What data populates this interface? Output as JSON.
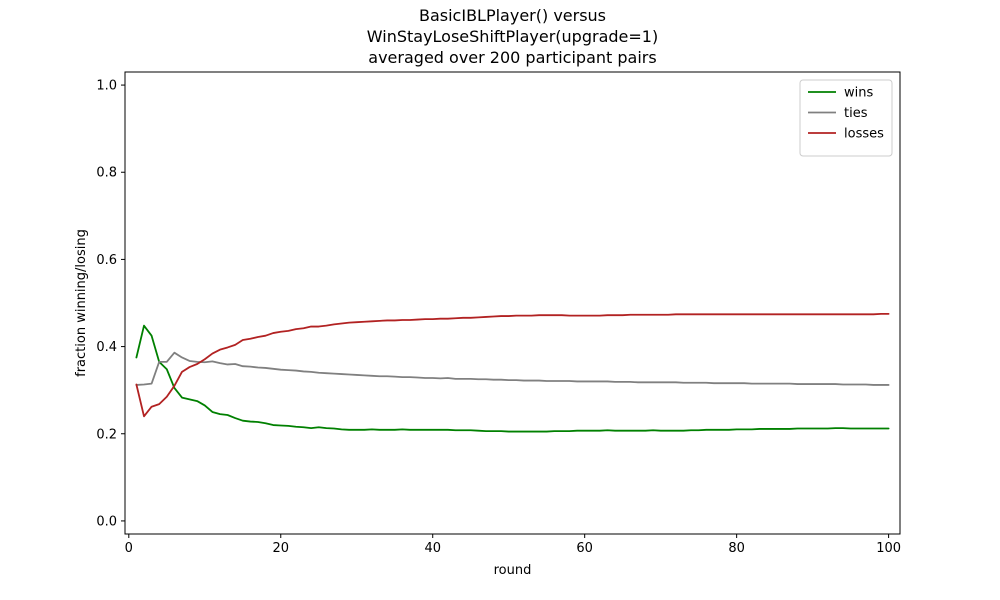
{
  "chart_data": {
    "type": "line",
    "title": [
      "BasicIBLPlayer() versus",
      "WinStayLoseShiftPlayer(upgrade=1)",
      "averaged over 200 participant pairs"
    ],
    "xlabel": "round",
    "ylabel": "fraction winning/losing",
    "xlim": [
      -0.5,
      101.5
    ],
    "ylim": [
      -0.03,
      1.03
    ],
    "xticks": [
      0,
      20,
      40,
      60,
      80,
      100
    ],
    "yticks": [
      0.0,
      0.2,
      0.4,
      0.6,
      0.8,
      1.0
    ],
    "xtick_labels": [
      "0",
      "20",
      "40",
      "60",
      "80",
      "100"
    ],
    "ytick_labels": [
      "0.0",
      "0.2",
      "0.4",
      "0.6",
      "0.8",
      "1.0"
    ],
    "grid": false,
    "legend": {
      "position": "top-right"
    },
    "x_start": 1,
    "x_end": 100,
    "series": [
      {
        "name": "wins",
        "color": "#008000",
        "values": [
          0.375,
          0.448,
          0.425,
          0.365,
          0.348,
          0.305,
          0.283,
          0.279,
          0.275,
          0.265,
          0.25,
          0.245,
          0.243,
          0.236,
          0.23,
          0.228,
          0.227,
          0.224,
          0.22,
          0.219,
          0.218,
          0.216,
          0.215,
          0.213,
          0.215,
          0.213,
          0.212,
          0.21,
          0.209,
          0.209,
          0.209,
          0.21,
          0.209,
          0.209,
          0.209,
          0.21,
          0.209,
          0.209,
          0.209,
          0.209,
          0.209,
          0.209,
          0.208,
          0.208,
          0.208,
          0.207,
          0.206,
          0.206,
          0.206,
          0.205,
          0.205,
          0.205,
          0.205,
          0.205,
          0.205,
          0.206,
          0.206,
          0.206,
          0.207,
          0.207,
          0.207,
          0.207,
          0.208,
          0.207,
          0.207,
          0.207,
          0.207,
          0.207,
          0.208,
          0.207,
          0.207,
          0.207,
          0.207,
          0.208,
          0.208,
          0.209,
          0.209,
          0.209,
          0.209,
          0.21,
          0.21,
          0.21,
          0.211,
          0.211,
          0.211,
          0.211,
          0.211,
          0.212,
          0.212,
          0.212,
          0.212,
          0.212,
          0.213,
          0.213,
          0.212,
          0.212,
          0.212,
          0.212,
          0.212,
          0.212
        ]
      },
      {
        "name": "ties",
        "color": "#808080",
        "values": [
          0.312,
          0.313,
          0.315,
          0.365,
          0.365,
          0.386,
          0.375,
          0.367,
          0.365,
          0.364,
          0.366,
          0.362,
          0.359,
          0.36,
          0.355,
          0.354,
          0.352,
          0.351,
          0.349,
          0.347,
          0.346,
          0.345,
          0.343,
          0.342,
          0.34,
          0.339,
          0.338,
          0.337,
          0.336,
          0.335,
          0.334,
          0.333,
          0.332,
          0.332,
          0.331,
          0.33,
          0.33,
          0.329,
          0.328,
          0.328,
          0.327,
          0.328,
          0.326,
          0.326,
          0.326,
          0.325,
          0.325,
          0.324,
          0.324,
          0.323,
          0.323,
          0.322,
          0.322,
          0.322,
          0.321,
          0.321,
          0.321,
          0.321,
          0.32,
          0.32,
          0.32,
          0.32,
          0.32,
          0.319,
          0.319,
          0.319,
          0.318,
          0.318,
          0.318,
          0.318,
          0.318,
          0.318,
          0.317,
          0.317,
          0.317,
          0.317,
          0.316,
          0.316,
          0.316,
          0.316,
          0.316,
          0.315,
          0.315,
          0.315,
          0.315,
          0.315,
          0.315,
          0.314,
          0.314,
          0.314,
          0.314,
          0.314,
          0.314,
          0.313,
          0.313,
          0.313,
          0.313,
          0.312,
          0.312,
          0.312
        ]
      },
      {
        "name": "losses",
        "color": "#b22222",
        "values": [
          0.313,
          0.24,
          0.262,
          0.268,
          0.285,
          0.31,
          0.342,
          0.353,
          0.36,
          0.371,
          0.384,
          0.393,
          0.398,
          0.404,
          0.415,
          0.418,
          0.422,
          0.425,
          0.431,
          0.434,
          0.436,
          0.44,
          0.442,
          0.446,
          0.446,
          0.448,
          0.451,
          0.453,
          0.455,
          0.456,
          0.457,
          0.458,
          0.459,
          0.46,
          0.46,
          0.461,
          0.461,
          0.462,
          0.463,
          0.463,
          0.464,
          0.464,
          0.465,
          0.466,
          0.466,
          0.467,
          0.468,
          0.469,
          0.47,
          0.47,
          0.471,
          0.471,
          0.471,
          0.472,
          0.472,
          0.472,
          0.472,
          0.471,
          0.471,
          0.471,
          0.471,
          0.471,
          0.472,
          0.472,
          0.472,
          0.473,
          0.473,
          0.473,
          0.473,
          0.473,
          0.473,
          0.474,
          0.474,
          0.474,
          0.474,
          0.474,
          0.474,
          0.474,
          0.474,
          0.474,
          0.474,
          0.474,
          0.474,
          0.474,
          0.474,
          0.474,
          0.474,
          0.474,
          0.474,
          0.474,
          0.474,
          0.474,
          0.474,
          0.474,
          0.474,
          0.474,
          0.474,
          0.474,
          0.475,
          0.475
        ]
      }
    ]
  }
}
